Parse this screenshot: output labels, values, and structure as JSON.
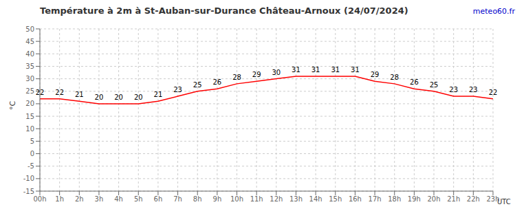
{
  "chart_data": {
    "type": "line",
    "title": "Température à 2m à St-Auban-sur-Durance Château-Arnoux (24/07/2024)",
    "ylabel": "°C",
    "categories": [
      "00h",
      "1h",
      "2h",
      "3h",
      "4h",
      "5h",
      "6h",
      "7h",
      "8h",
      "9h",
      "10h",
      "11h",
      "12h",
      "13h",
      "14h",
      "15h",
      "16h",
      "17h",
      "18h",
      "19h",
      "20h",
      "21h",
      "22h",
      "23h"
    ],
    "values": [
      22,
      22,
      21,
      20,
      20,
      20,
      21,
      23,
      25,
      26,
      28,
      29,
      30,
      31,
      31,
      31,
      31,
      29,
      28,
      26,
      25,
      23,
      23,
      22
    ],
    "color": "#ff0000",
    "ylim": [
      -15,
      50
    ],
    "yticks": [
      -15,
      -10,
      -5,
      0,
      5,
      10,
      15,
      20,
      25,
      30,
      35,
      40,
      45,
      50
    ],
    "grid": true,
    "data_labels": true,
    "annotations": [
      {
        "text": "meteo60.fr",
        "color": "#0000cc"
      },
      {
        "text": "UTC"
      }
    ]
  }
}
